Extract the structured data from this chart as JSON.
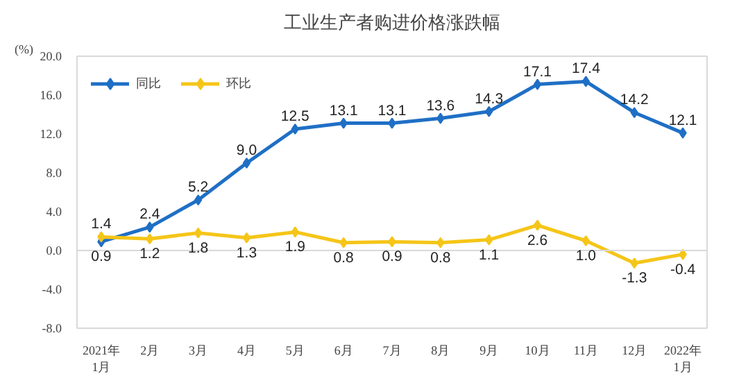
{
  "chart_data": {
    "type": "line",
    "title": "工业生产者购进价格涨跌幅",
    "annotations": [
      "(%)"
    ],
    "categories": [
      "2021年\n1月",
      "2月",
      "3月",
      "4月",
      "5月",
      "6月",
      "7月",
      "8月",
      "9月",
      "10月",
      "11月",
      "12月",
      "2022年\n1月"
    ],
    "series": [
      {
        "name": "同比",
        "color": "#1f6fc5",
        "values": [
          0.9,
          2.4,
          5.2,
          9.0,
          12.5,
          13.1,
          13.1,
          13.6,
          14.3,
          17.1,
          17.4,
          14.2,
          12.1
        ],
        "value_labels": [
          "0.9",
          "2.4",
          "5.2",
          "9.0",
          "12.5",
          "13.1",
          "13.1",
          "13.6",
          "14.3",
          "17.1",
          "17.4",
          "14.2",
          "12.1"
        ]
      },
      {
        "name": "环比",
        "color": "#f5c518",
        "values": [
          1.4,
          1.2,
          1.8,
          1.3,
          1.9,
          0.8,
          0.9,
          0.8,
          1.1,
          2.6,
          1.0,
          -1.3,
          -0.4
        ],
        "value_labels": [
          "1.4",
          "1.2",
          "1.8",
          "1.3",
          "1.9",
          "0.8",
          "0.9",
          "0.8",
          "1.1",
          "2.6",
          "1.0",
          "-1.3",
          "-0.4"
        ]
      }
    ],
    "ylim": [
      -8.0,
      20.0
    ],
    "yticks": [
      {
        "value": -8,
        "label": "-8.0"
      },
      {
        "value": -4,
        "label": "-4.0"
      },
      {
        "value": 0,
        "label": "0.0"
      },
      {
        "value": 4,
        "label": "4.0"
      },
      {
        "value": 8,
        "label": "8.0"
      },
      {
        "value": 12,
        "label": "12.0"
      },
      {
        "value": 16,
        "label": "16.0"
      },
      {
        "value": 20,
        "label": "20.0"
      }
    ],
    "ref_lines": [
      {
        "axis": "y",
        "value": 0,
        "color": "#d9d9d9"
      }
    ],
    "legend": "top left",
    "marker": "diamond",
    "grid": false
  }
}
